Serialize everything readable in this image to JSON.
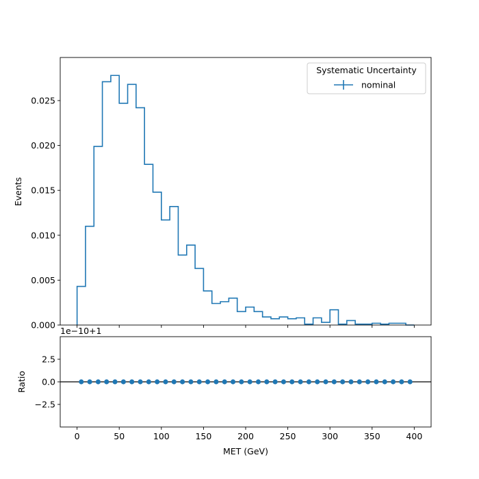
{
  "chart_data": [
    {
      "type": "histogram",
      "panel": "main",
      "ylabel": "Events",
      "xlim": [
        -20,
        420
      ],
      "ylim": [
        0,
        0.0298
      ],
      "y_ticks": [
        "0.000",
        "0.005",
        "0.010",
        "0.015",
        "0.020",
        "0.025"
      ],
      "bin_width": 10,
      "x_start": 0,
      "series": [
        {
          "name": "nominal",
          "values": [
            0.0043,
            0.011,
            0.0199,
            0.0271,
            0.0278,
            0.0247,
            0.0268,
            0.0242,
            0.0179,
            0.0148,
            0.0117,
            0.0132,
            0.0078,
            0.0089,
            0.0063,
            0.0038,
            0.0024,
            0.0026,
            0.003,
            0.0015,
            0.002,
            0.0015,
            0.0009,
            0.0007,
            0.0009,
            0.0007,
            0.0008,
            0.0001,
            0.0008,
            0.0003,
            0.0017,
            0.0001,
            0.0005,
            0.0001,
            0.0001,
            0.0002,
            0.0001,
            0.0002,
            0.0002,
            0.0
          ]
        }
      ],
      "legend": {
        "title": "Systematic Uncertainty",
        "entries": [
          "nominal"
        ],
        "placement": "top-right"
      },
      "color": "#1f77b4"
    },
    {
      "type": "scatter",
      "panel": "ratio",
      "ylabel": "Ratio",
      "xlabel": "MET (GeV)",
      "offset_label": "1e−10+1",
      "xlim": [
        -20,
        420
      ],
      "ylim": [
        -5,
        5
      ],
      "y_ticks": [
        "−2.5",
        "0.0",
        "2.5"
      ],
      "y_tick_values": [
        -2.5,
        0.0,
        2.5
      ],
      "x_ticks": [
        "0",
        "50",
        "100",
        "150",
        "200",
        "250",
        "300",
        "350",
        "400"
      ],
      "x_tick_values": [
        0,
        50,
        100,
        150,
        200,
        250,
        300,
        350,
        400
      ],
      "x": [
        5,
        15,
        25,
        35,
        45,
        55,
        65,
        75,
        85,
        95,
        105,
        115,
        125,
        135,
        145,
        155,
        165,
        175,
        185,
        195,
        205,
        215,
        225,
        235,
        245,
        255,
        265,
        275,
        285,
        295,
        305,
        315,
        325,
        335,
        345,
        355,
        365,
        375,
        385,
        395
      ],
      "values": [
        0,
        0,
        0,
        0,
        0,
        0,
        0,
        0,
        0,
        0,
        0,
        0,
        0,
        0,
        0,
        0,
        0,
        0,
        0,
        0,
        0,
        0,
        0,
        0,
        0,
        0,
        0,
        0,
        0,
        0,
        0,
        0,
        0,
        0,
        0,
        0,
        0,
        0,
        0,
        0
      ],
      "reference_line": 0,
      "color": "#1f77b4"
    }
  ]
}
